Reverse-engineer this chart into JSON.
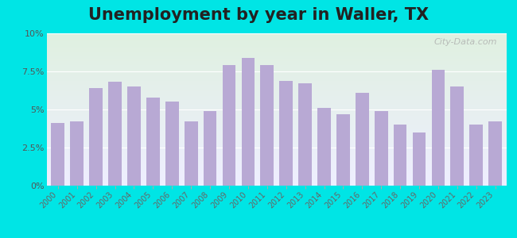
{
  "title": "Unemployment by year in Waller, TX",
  "years": [
    2000,
    2001,
    2002,
    2003,
    2004,
    2005,
    2006,
    2007,
    2008,
    2009,
    2010,
    2011,
    2012,
    2013,
    2014,
    2015,
    2016,
    2017,
    2018,
    2019,
    2020,
    2021,
    2022,
    2023
  ],
  "values": [
    4.1,
    4.2,
    6.4,
    6.8,
    6.5,
    5.8,
    5.5,
    4.2,
    4.9,
    7.9,
    8.4,
    7.9,
    6.9,
    6.7,
    5.1,
    4.7,
    6.1,
    4.9,
    4.0,
    3.5,
    7.6,
    6.5,
    4.0,
    4.2
  ],
  "bar_color": "#b8a9d4",
  "background_outer": "#00e5e5",
  "background_inner_top": "#dff0e0",
  "background_inner_bottom": "#eeeeff",
  "title_fontsize": 15,
  "title_fontweight": "bold",
  "ylim": [
    0,
    10
  ],
  "yticks": [
    0,
    2.5,
    5.0,
    7.5,
    10.0
  ],
  "ytick_labels": [
    "0%",
    "2.5%",
    "5%",
    "7.5%",
    "10%"
  ],
  "watermark_text": "City-Data.com"
}
